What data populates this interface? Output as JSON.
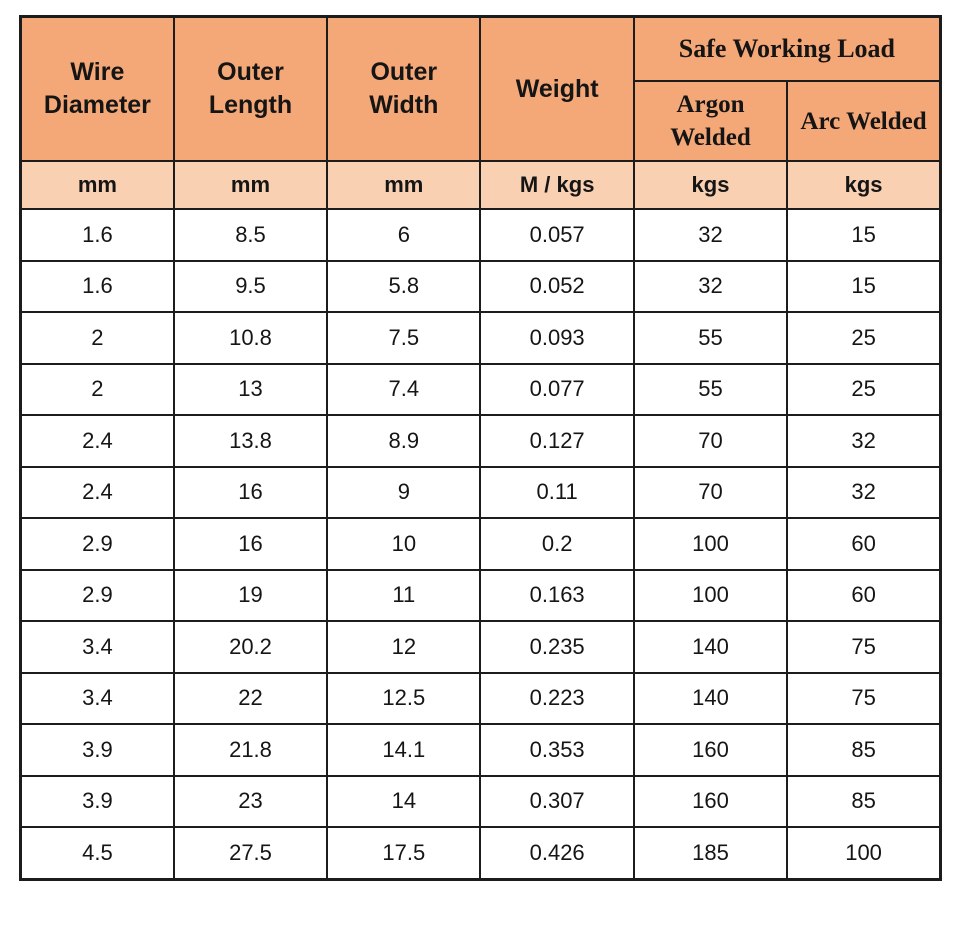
{
  "table": {
    "group_header": "Safe Working Load",
    "columns": [
      {
        "id": "wire-diameter",
        "label": "Wire Diameter",
        "unit": "mm"
      },
      {
        "id": "outer-length",
        "label": "Outer Length",
        "unit": "mm"
      },
      {
        "id": "outer-width",
        "label": "Outer Width",
        "unit": "mm"
      },
      {
        "id": "weight",
        "label": "Weight",
        "unit": "M / kgs"
      },
      {
        "id": "argon-welded",
        "label": "Argon Welded",
        "unit": "kgs"
      },
      {
        "id": "arc-welded",
        "label": "Arc Welded",
        "unit": "kgs"
      }
    ],
    "rows": [
      [
        "1.6",
        "8.5",
        "6",
        "0.057",
        "32",
        "15"
      ],
      [
        "1.6",
        "9.5",
        "5.8",
        "0.052",
        "32",
        "15"
      ],
      [
        "2",
        "10.8",
        "7.5",
        "0.093",
        "55",
        "25"
      ],
      [
        "2",
        "13",
        "7.4",
        "0.077",
        "55",
        "25"
      ],
      [
        "2.4",
        "13.8",
        "8.9",
        "0.127",
        "70",
        "32"
      ],
      [
        "2.4",
        "16",
        "9",
        "0.11",
        "70",
        "32"
      ],
      [
        "2.9",
        "16",
        "10",
        "0.2",
        "100",
        "60"
      ],
      [
        "2.9",
        "19",
        "11",
        "0.163",
        "100",
        "60"
      ],
      [
        "3.4",
        "20.2",
        "12",
        "0.235",
        "140",
        "75"
      ],
      [
        "3.4",
        "22",
        "12.5",
        "0.223",
        "140",
        "75"
      ],
      [
        "3.9",
        "21.8",
        "14.1",
        "0.353",
        "160",
        "85"
      ],
      [
        "3.9",
        "23",
        "14",
        "0.307",
        "160",
        "85"
      ],
      [
        "4.5",
        "27.5",
        "17.5",
        "0.426",
        "185",
        "100"
      ]
    ],
    "colors": {
      "header_bg": "#f4a777",
      "units_bg": "#f9d0b2",
      "border": "#1c1c1c",
      "text": "#151515"
    }
  }
}
